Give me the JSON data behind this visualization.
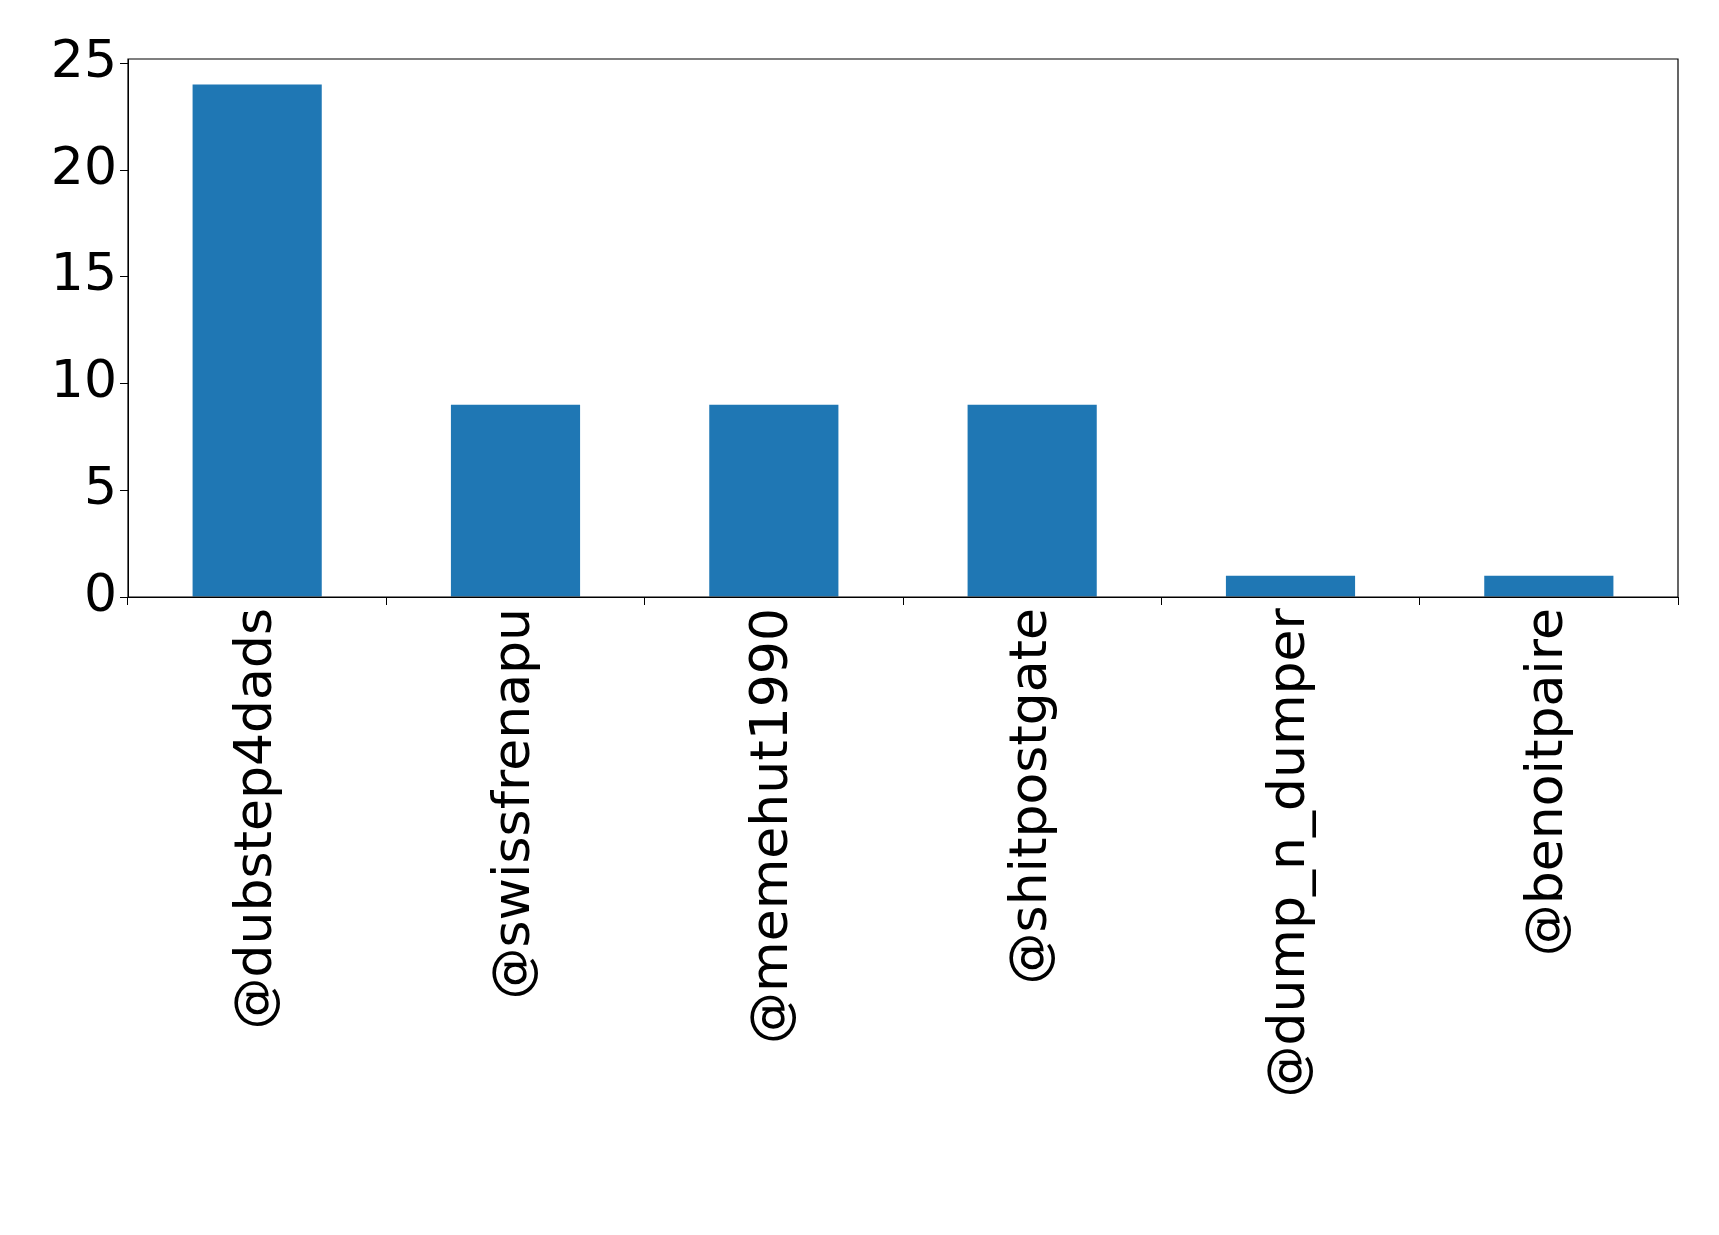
{
  "chart_data": {
    "type": "bar",
    "categories": [
      "@dubstep4dads",
      "@swissfrenapu",
      "@memehut1990",
      "@shitpostgate",
      "@dump_n_dumper",
      "@benoitpaire"
    ],
    "values": [
      24,
      9,
      9,
      9,
      1,
      1
    ],
    "color": "#1f77b4",
    "ylim": [
      0,
      25.2
    ],
    "yticks": [
      0,
      5,
      10,
      15,
      20,
      25
    ],
    "grid": false,
    "legend": false
  }
}
